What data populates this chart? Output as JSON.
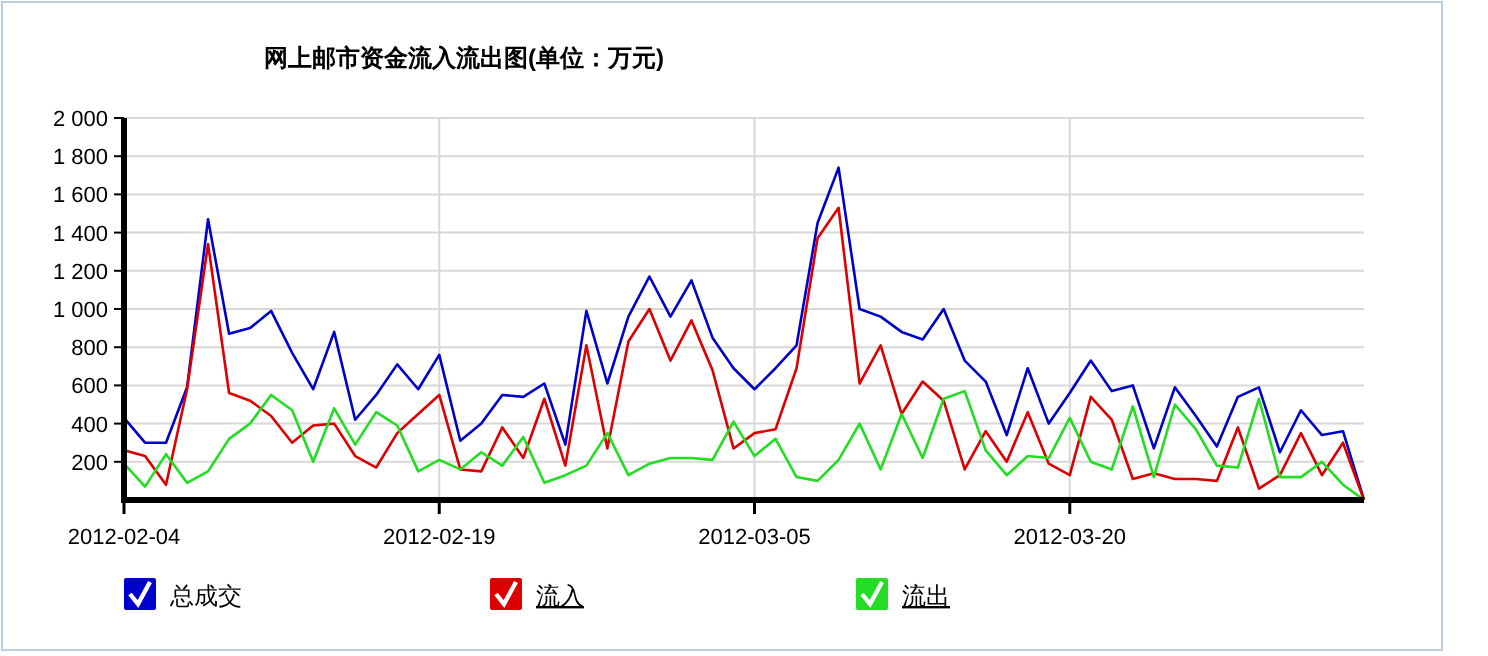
{
  "chart_data": {
    "type": "line",
    "title": "网上邮市资金流入流出图(单位：万元)",
    "x": [
      "2012-02-04",
      "2012-02-05",
      "2012-02-06",
      "2012-02-07",
      "2012-02-08",
      "2012-02-09",
      "2012-02-10",
      "2012-02-11",
      "2012-02-12",
      "2012-02-13",
      "2012-02-14",
      "2012-02-15",
      "2012-02-16",
      "2012-02-17",
      "2012-02-18",
      "2012-02-19",
      "2012-02-20",
      "2012-02-21",
      "2012-02-22",
      "2012-02-23",
      "2012-02-24",
      "2012-02-25",
      "2012-02-26",
      "2012-02-27",
      "2012-02-28",
      "2012-02-29",
      "2012-03-01",
      "2012-03-02",
      "2012-03-03",
      "2012-03-04",
      "2012-03-05",
      "2012-03-06",
      "2012-03-07",
      "2012-03-08",
      "2012-03-09",
      "2012-03-10",
      "2012-03-11",
      "2012-03-12",
      "2012-03-13",
      "2012-03-14",
      "2012-03-15",
      "2012-03-16",
      "2012-03-17",
      "2012-03-18",
      "2012-03-19",
      "2012-03-20",
      "2012-03-21",
      "2012-03-22",
      "2012-03-23",
      "2012-03-24",
      "2012-03-25",
      "2012-03-26",
      "2012-03-27",
      "2012-03-28",
      "2012-03-29",
      "2012-03-30",
      "2012-03-31",
      "2012-04-01",
      "2012-04-02",
      "2012-04-03"
    ],
    "series": [
      {
        "name": "总成交",
        "color": "#0000cc",
        "values": [
          430,
          300,
          300,
          590,
          1470,
          870,
          900,
          990,
          770,
          580,
          880,
          420,
          550,
          710,
          580,
          760,
          310,
          400,
          550,
          540,
          610,
          290,
          990,
          610,
          960,
          1170,
          960,
          1150,
          850,
          690,
          580,
          690,
          810,
          1450,
          1740,
          1000,
          960,
          880,
          840,
          1000,
          730,
          620,
          340,
          690,
          400,
          560,
          730,
          570,
          600,
          270,
          590,
          440,
          280,
          540,
          590,
          250,
          470,
          340,
          360,
          0
        ]
      },
      {
        "name": "流入",
        "color": "#dd0000",
        "values": [
          260,
          230,
          80,
          580,
          1340,
          560,
          520,
          440,
          300,
          390,
          400,
          230,
          170,
          350,
          450,
          550,
          160,
          150,
          380,
          220,
          530,
          180,
          810,
          270,
          830,
          1000,
          730,
          940,
          680,
          270,
          350,
          370,
          690,
          1370,
          1530,
          610,
          810,
          450,
          620,
          520,
          160,
          360,
          200,
          460,
          190,
          130,
          540,
          420,
          110,
          140,
          110,
          110,
          100,
          380,
          60,
          130,
          350,
          130,
          300,
          0
        ]
      },
      {
        "name": "流出",
        "color": "#22dd22",
        "values": [
          190,
          70,
          240,
          90,
          150,
          320,
          400,
          550,
          470,
          200,
          480,
          290,
          460,
          390,
          150,
          210,
          160,
          250,
          180,
          330,
          90,
          130,
          180,
          350,
          130,
          190,
          220,
          220,
          210,
          410,
          230,
          320,
          120,
          100,
          210,
          400,
          160,
          450,
          220,
          530,
          570,
          260,
          130,
          230,
          220,
          430,
          200,
          160,
          490,
          120,
          500,
          370,
          180,
          170,
          530,
          120,
          120,
          200,
          80,
          0
        ]
      }
    ],
    "xlim": [
      "2012-02-04",
      "2012-04-03"
    ],
    "xticks": [
      "2012-02-04",
      "2012-02-19",
      "2012-03-05",
      "2012-03-20"
    ],
    "ylim": [
      0,
      2000
    ],
    "yticks": [
      200,
      400,
      600,
      800,
      {
        "value": 1000,
        "label": "1 000"
      },
      {
        "value": 1200,
        "label": "1 200"
      },
      {
        "value": 1400,
        "label": "1 400"
      },
      {
        "value": 1600,
        "label": "1 600"
      },
      {
        "value": 1800,
        "label": "1 800"
      },
      {
        "value": 2000,
        "label": "2 000"
      }
    ],
    "grid": true,
    "legend": "bottom"
  }
}
